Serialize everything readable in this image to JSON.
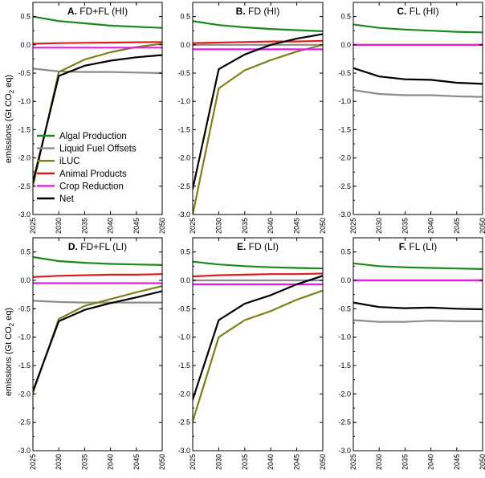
{
  "figure": {
    "ylabel_prefix": "emissions (Gt CO",
    "ylabel_sub": "2",
    "ylabel_suffix": " eq)"
  },
  "series_defs": [
    {
      "key": "algal",
      "name": "Algal Production",
      "color": "#1a8a1a"
    },
    {
      "key": "liquid",
      "name": "Liquid Fuel Offsets",
      "color": "#8c8c8c"
    },
    {
      "key": "iluc",
      "name": "iLUC",
      "color": "#7f7f1a"
    },
    {
      "key": "animal",
      "name": "Animal Products",
      "color": "#e01b1b"
    },
    {
      "key": "crop",
      "name": "Crop Reduction",
      "color": "#e020e0"
    },
    {
      "key": "net",
      "name": "Net",
      "color": "#000000"
    }
  ],
  "chart_data": [
    {
      "type": "line",
      "letter": "A.",
      "title": "FD+FL (HI)",
      "x": [
        2025,
        2030,
        2035,
        2040,
        2045,
        2050
      ],
      "ylim": [
        -3.0,
        0.75
      ],
      "yticks": [
        "0.5",
        "0.0",
        "-0.5",
        "-1.0",
        "-1.5",
        "-2.0",
        "-2.5",
        "-3.0"
      ],
      "xticks": [
        "2025",
        "2030",
        "2035",
        "2040",
        "2045",
        "2050"
      ],
      "series": [
        {
          "key": "algal",
          "values": [
            0.5,
            0.42,
            0.38,
            0.34,
            0.32,
            0.3
          ]
        },
        {
          "key": "liquid",
          "values": [
            -0.42,
            -0.47,
            -0.48,
            -0.48,
            -0.49,
            -0.5
          ]
        },
        {
          "key": "iluc",
          "values": [
            -2.5,
            -0.48,
            -0.26,
            -0.13,
            -0.04,
            0.02
          ]
        },
        {
          "key": "animal",
          "values": [
            0.02,
            0.03,
            0.035,
            0.04,
            0.045,
            0.05
          ]
        },
        {
          "key": "crop",
          "values": [
            -0.05,
            -0.05,
            -0.05,
            -0.05,
            -0.05,
            -0.05
          ]
        },
        {
          "key": "net",
          "values": [
            -2.43,
            -0.55,
            -0.37,
            -0.28,
            -0.22,
            -0.18
          ]
        }
      ]
    },
    {
      "type": "line",
      "letter": "B.",
      "title": "FD (HI)",
      "x": [
        2025,
        2030,
        2035,
        2040,
        2045,
        2050
      ],
      "ylim": [
        -3.0,
        0.75
      ],
      "yticks": [
        "0.5",
        "0.0",
        "-0.5",
        "-1.0",
        "-1.5",
        "-2.0",
        "-2.5",
        "-3.0"
      ],
      "xticks": [
        "2025",
        "2030",
        "2035",
        "2040",
        "2045",
        "2050"
      ],
      "series": [
        {
          "key": "algal",
          "values": [
            0.42,
            0.35,
            0.31,
            0.28,
            0.26,
            0.24
          ]
        },
        {
          "key": "liquid",
          "values": [
            0.0,
            0.0,
            0.0,
            0.0,
            0.0,
            0.0
          ]
        },
        {
          "key": "iluc",
          "values": [
            -3.0,
            -0.77,
            -0.45,
            -0.27,
            -0.12,
            0.0
          ]
        },
        {
          "key": "animal",
          "values": [
            0.03,
            0.04,
            0.05,
            0.06,
            0.06,
            0.07
          ]
        },
        {
          "key": "crop",
          "values": [
            -0.08,
            -0.08,
            -0.08,
            -0.08,
            -0.08,
            -0.08
          ]
        },
        {
          "key": "net",
          "values": [
            -2.55,
            -0.43,
            -0.17,
            0.0,
            0.11,
            0.19
          ]
        }
      ]
    },
    {
      "type": "line",
      "letter": "C.",
      "title": "FL (HI)",
      "x": [
        2025,
        2030,
        2035,
        2040,
        2045,
        2050
      ],
      "ylim": [
        -3.0,
        0.75
      ],
      "yticks": [
        "0.5",
        "0.0",
        "-0.5",
        "-1.0",
        "-1.5",
        "-2.0",
        "-2.5",
        "-3.0"
      ],
      "xticks": [
        "2025",
        "2030",
        "2035",
        "2040",
        "2045",
        "2050"
      ],
      "series": [
        {
          "key": "algal",
          "values": [
            0.36,
            0.3,
            0.27,
            0.25,
            0.23,
            0.22
          ]
        },
        {
          "key": "liquid",
          "values": [
            -0.8,
            -0.87,
            -0.89,
            -0.89,
            -0.91,
            -0.92
          ]
        },
        {
          "key": "animal",
          "values": [
            0.0,
            0.0,
            0.0,
            0.0,
            0.0,
            0.0
          ]
        },
        {
          "key": "crop",
          "values": [
            0.0,
            0.0,
            0.0,
            0.0,
            0.0,
            0.0
          ]
        },
        {
          "key": "net",
          "values": [
            -0.41,
            -0.56,
            -0.61,
            -0.62,
            -0.67,
            -0.69
          ]
        }
      ]
    },
    {
      "type": "line",
      "letter": "D.",
      "title": "FD+FL (LI)",
      "x": [
        2025,
        2030,
        2035,
        2040,
        2045,
        2050
      ],
      "ylim": [
        -3.0,
        0.75
      ],
      "yticks": [
        "0.5",
        "0.0",
        "-0.5",
        "-1.0",
        "-1.5",
        "-2.0",
        "-2.5",
        "-3.0"
      ],
      "xticks": [
        "2025",
        "2030",
        "2035",
        "2040",
        "2045",
        "2050"
      ],
      "series": [
        {
          "key": "algal",
          "values": [
            0.41,
            0.34,
            0.31,
            0.29,
            0.28,
            0.27
          ]
        },
        {
          "key": "liquid",
          "values": [
            -0.36,
            -0.38,
            -0.39,
            -0.39,
            -0.39,
            -0.39
          ]
        },
        {
          "key": "iluc",
          "values": [
            -1.98,
            -0.68,
            -0.45,
            -0.33,
            -0.21,
            -0.1
          ]
        },
        {
          "key": "animal",
          "values": [
            0.06,
            0.08,
            0.09,
            0.1,
            0.1,
            0.11
          ]
        },
        {
          "key": "crop",
          "values": [
            -0.05,
            -0.05,
            -0.05,
            -0.05,
            -0.05,
            -0.05
          ]
        },
        {
          "key": "net",
          "values": [
            -1.95,
            -0.72,
            -0.52,
            -0.4,
            -0.3,
            -0.19
          ]
        }
      ]
    },
    {
      "type": "line",
      "letter": "E.",
      "title": "FD (LI)",
      "x": [
        2025,
        2030,
        2035,
        2040,
        2045,
        2050
      ],
      "ylim": [
        -3.0,
        0.75
      ],
      "yticks": [
        "0.5",
        "0.0",
        "-0.5",
        "-1.0",
        "-1.5",
        "-2.0",
        "-2.5",
        "-3.0"
      ],
      "xticks": [
        "2025",
        "2030",
        "2035",
        "2040",
        "2045",
        "2050"
      ],
      "series": [
        {
          "key": "algal",
          "values": [
            0.33,
            0.28,
            0.25,
            0.23,
            0.22,
            0.21
          ]
        },
        {
          "key": "liquid",
          "values": [
            0.0,
            0.0,
            0.0,
            0.0,
            0.0,
            0.0
          ]
        },
        {
          "key": "iluc",
          "values": [
            -2.48,
            -1.0,
            -0.7,
            -0.54,
            -0.34,
            -0.18
          ]
        },
        {
          "key": "animal",
          "values": [
            0.07,
            0.09,
            0.1,
            0.11,
            0.11,
            0.12
          ]
        },
        {
          "key": "crop",
          "values": [
            -0.07,
            -0.07,
            -0.07,
            -0.07,
            -0.07,
            -0.07
          ]
        },
        {
          "key": "net",
          "values": [
            -2.1,
            -0.7,
            -0.41,
            -0.26,
            -0.07,
            0.08
          ]
        }
      ]
    },
    {
      "type": "line",
      "letter": "F.",
      "title": "FL (LI)",
      "x": [
        2025,
        2030,
        2035,
        2040,
        2045,
        2050
      ],
      "ylim": [
        -3.0,
        0.75
      ],
      "yticks": [
        "0.5",
        "0.0",
        "-0.5",
        "-1.0",
        "-1.5",
        "-2.0",
        "-2.5",
        "-3.0"
      ],
      "xticks": [
        "2025",
        "2030",
        "2035",
        "2040",
        "2045",
        "2050"
      ],
      "series": [
        {
          "key": "algal",
          "values": [
            0.3,
            0.25,
            0.23,
            0.22,
            0.21,
            0.2
          ]
        },
        {
          "key": "liquid",
          "values": [
            -0.7,
            -0.73,
            -0.73,
            -0.71,
            -0.72,
            -0.72
          ]
        },
        {
          "key": "animal",
          "values": [
            0.0,
            0.0,
            0.0,
            0.0,
            0.0,
            0.0
          ]
        },
        {
          "key": "crop",
          "values": [
            0.0,
            0.0,
            0.0,
            0.0,
            0.0,
            0.0
          ]
        },
        {
          "key": "net",
          "values": [
            -0.39,
            -0.47,
            -0.49,
            -0.48,
            -0.5,
            -0.51
          ]
        }
      ]
    }
  ]
}
